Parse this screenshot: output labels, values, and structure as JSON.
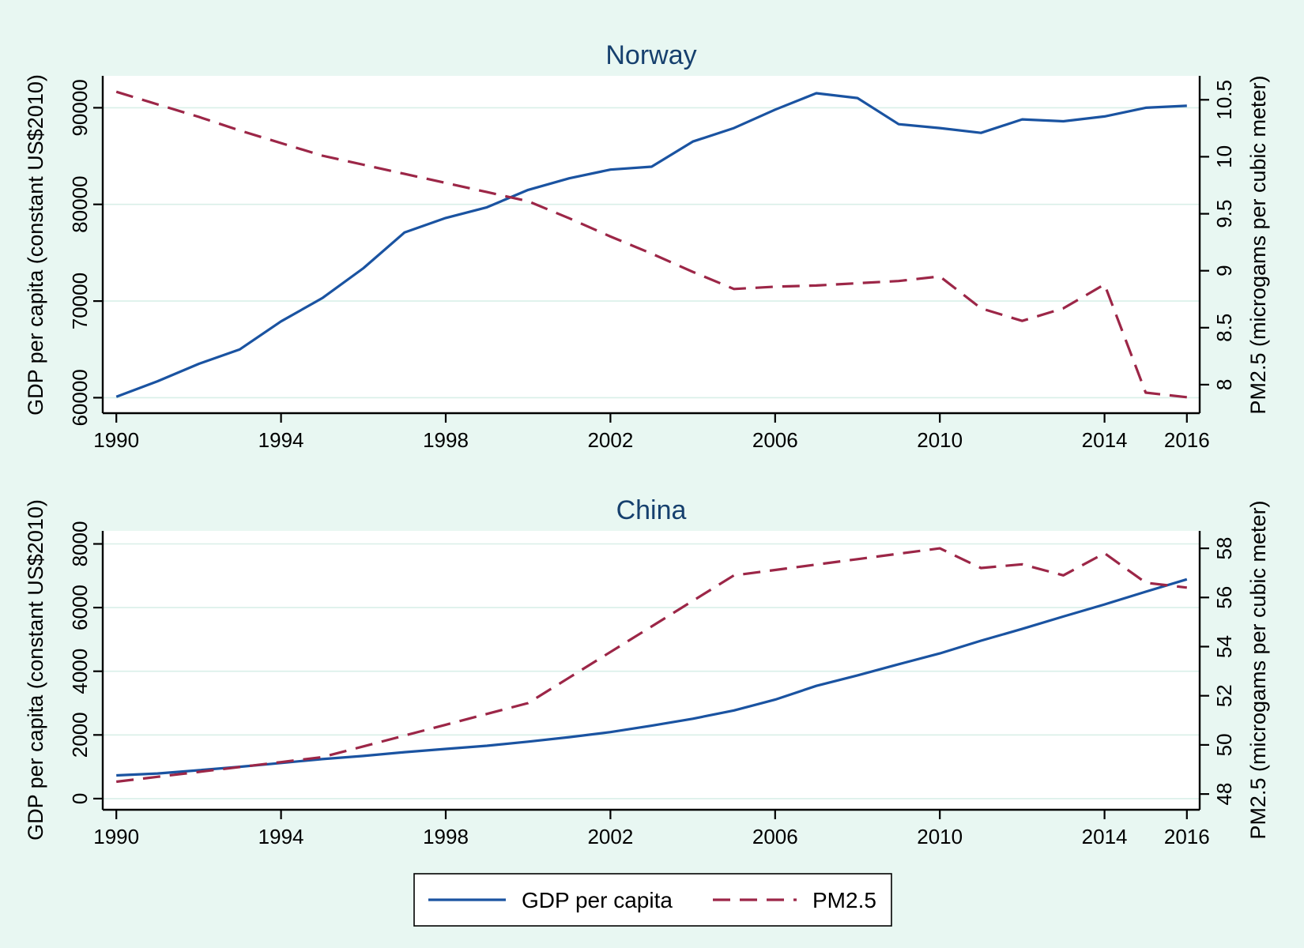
{
  "figure": {
    "background": "#e8f7f2",
    "plot_background": "#ffffff",
    "grid_color": "#d9efe8",
    "title_color": "#16406e",
    "gdp_color": "#1a53a1",
    "pm25_color": "#9c2647",
    "axis_color": "#000000"
  },
  "legend": {
    "gdp_label": "GDP per capita",
    "pm25_label": "PM2.5"
  },
  "chart_data": [
    {
      "type": "line",
      "title": "Norway",
      "xlabel": "",
      "ylabel_left": "GDP per capita (constant US$2010)",
      "ylabel_right": "PM2.5 (microgams per cubic meter)",
      "grid": "horizontal-left-ticks-only",
      "legend_position": "bottom-shared",
      "x": [
        1990,
        1991,
        1992,
        1993,
        1994,
        1995,
        1996,
        1997,
        1998,
        1999,
        2000,
        2001,
        2002,
        2003,
        2004,
        2005,
        2006,
        2007,
        2008,
        2009,
        2010,
        2011,
        2012,
        2013,
        2014,
        2015,
        2016
      ],
      "x_ticks": [
        1990,
        1994,
        1998,
        2002,
        2006,
        2010,
        2014,
        2016
      ],
      "x_range": [
        1989.67,
        2016.31
      ],
      "y_left_ticks": [
        60000,
        70000,
        80000,
        90000
      ],
      "y_left_range": [
        58400,
        93300
      ],
      "y_right_ticks": [
        8,
        8.5,
        9,
        9.5,
        10,
        10.5
      ],
      "y_right_range": [
        7.75,
        10.71
      ],
      "series": [
        {
          "name": "GDP per capita",
          "axis": "left",
          "style": "solid",
          "values": [
            60100,
            61700,
            63500,
            65000,
            67900,
            70300,
            73400,
            77100,
            78600,
            79700,
            81500,
            82700,
            83600,
            83900,
            86500,
            87900,
            89800,
            91500,
            91000,
            88300,
            87900,
            87400,
            88800,
            88600,
            89100,
            90000,
            90200
          ]
        },
        {
          "name": "PM2.5",
          "axis": "right",
          "style": "dashed",
          "values": [
            10.57,
            10.46,
            10.35,
            10.23,
            10.12,
            10.01,
            9.93,
            9.85,
            9.77,
            9.69,
            9.61,
            9.46,
            9.3,
            9.15,
            8.99,
            8.84,
            8.86,
            8.87,
            8.89,
            8.91,
            8.95,
            8.67,
            8.56,
            8.67,
            8.88,
            7.93,
            7.89
          ]
        }
      ]
    },
    {
      "type": "line",
      "title": "China",
      "xlabel": "",
      "ylabel_left": "GDP per capita (constant US$2010)",
      "ylabel_right": "PM2.5 (microgams per cubic meter)",
      "grid": "horizontal-left-ticks-only",
      "legend_position": "bottom-shared",
      "x": [
        1990,
        1991,
        1992,
        1993,
        1994,
        1995,
        1996,
        1997,
        1998,
        1999,
        2000,
        2001,
        2002,
        2003,
        2004,
        2005,
        2006,
        2007,
        2008,
        2009,
        2010,
        2011,
        2012,
        2013,
        2014,
        2015,
        2016
      ],
      "x_ticks": [
        1990,
        1994,
        1998,
        2002,
        2006,
        2010,
        2014,
        2016
      ],
      "x_range": [
        1989.67,
        2016.31
      ],
      "y_left_ticks": [
        0,
        2000,
        4000,
        6000,
        8000
      ],
      "y_left_range": [
        -350,
        8410
      ],
      "y_right_ticks": [
        48,
        50,
        52,
        54,
        56,
        58
      ],
      "y_right_range": [
        47.36,
        58.71
      ],
      "series": [
        {
          "name": "GDP per capita",
          "axis": "left",
          "style": "solid",
          "values": [
            730,
            790,
            890,
            1000,
            1120,
            1240,
            1340,
            1460,
            1560,
            1660,
            1790,
            1930,
            2090,
            2290,
            2510,
            2770,
            3110,
            3540,
            3870,
            4220,
            4560,
            4960,
            5330,
            5720,
            6100,
            6500,
            6890
          ]
        },
        {
          "name": "PM2.5",
          "axis": "right",
          "style": "dashed",
          "values": [
            48.5,
            48.7,
            48.9,
            49.1,
            49.3,
            49.5,
            49.94,
            50.38,
            50.82,
            51.26,
            51.7,
            52.74,
            53.78,
            54.82,
            55.86,
            56.9,
            57.12,
            57.34,
            57.56,
            57.78,
            58,
            57.2,
            57.35,
            56.9,
            57.8,
            56.6,
            56.4
          ]
        }
      ]
    }
  ]
}
